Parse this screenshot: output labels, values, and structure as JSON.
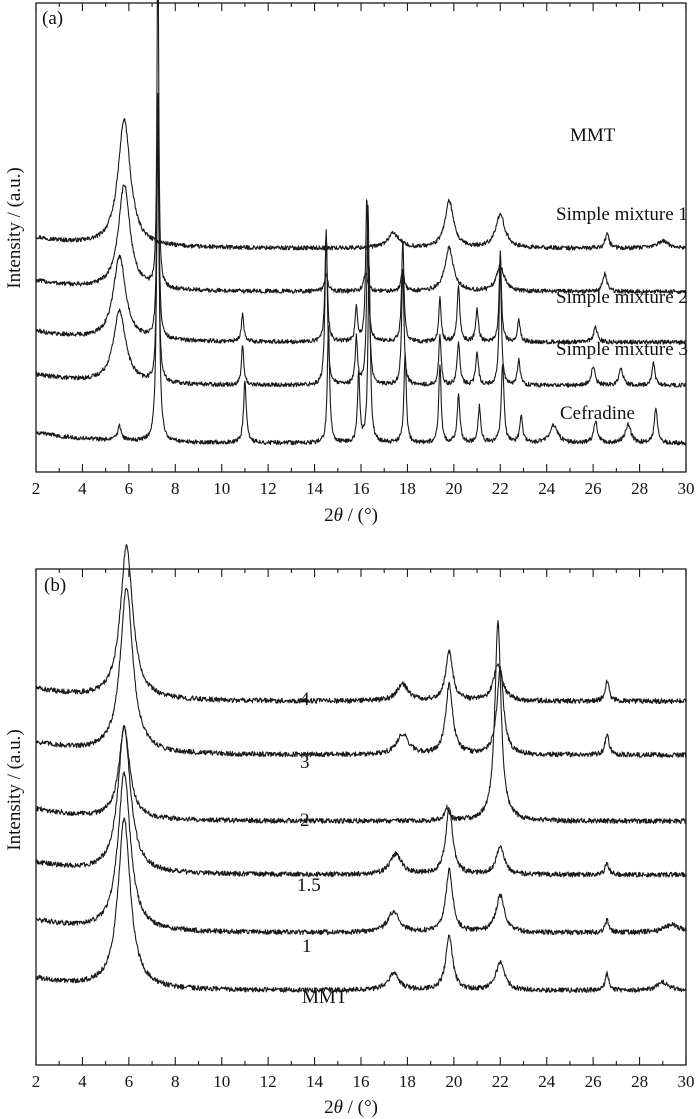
{
  "chart_data": [
    {
      "type": "line",
      "panel_label": "(a)",
      "xlabel_prefix": "2",
      "xlabel_symbol": "θ",
      "xlabel_suffix": " / (°)",
      "ylabel": "Intensity / (a.u.)",
      "xlim": [
        2,
        30
      ],
      "xticks": [
        2,
        4,
        6,
        8,
        10,
        12,
        14,
        16,
        18,
        20,
        22,
        24,
        26,
        28,
        30
      ],
      "series": [
        {
          "name": "MMT",
          "baseline": 0.34,
          "peaks": [
            [
              5.8,
              0.35,
              0.32
            ],
            [
              17.4,
              0.04,
              0.3
            ],
            [
              19.8,
              0.13,
              0.22
            ],
            [
              22.0,
              0.09,
              0.25
            ],
            [
              26.6,
              0.04,
              0.1
            ],
            [
              29.0,
              0.02,
              0.3
            ]
          ]
        },
        {
          "name": "Simple mixture 1",
          "baseline": 0.22,
          "peaks": [
            [
              5.8,
              0.29,
              0.3
            ],
            [
              7.25,
              1.07,
              0.04
            ],
            [
              14.5,
              0.05,
              0.08
            ],
            [
              16.2,
              0.05,
              0.1
            ],
            [
              17.8,
              0.06,
              0.08
            ],
            [
              19.8,
              0.12,
              0.22
            ],
            [
              22.0,
              0.07,
              0.2
            ],
            [
              26.5,
              0.05,
              0.1
            ]
          ]
        },
        {
          "name": "Simple mixture 2",
          "baseline": 0.08,
          "peaks": [
            [
              5.6,
              0.23,
              0.32
            ],
            [
              7.25,
              0.7,
              0.05
            ],
            [
              10.9,
              0.08,
              0.06
            ],
            [
              14.5,
              0.3,
              0.06
            ],
            [
              15.8,
              0.1,
              0.06
            ],
            [
              16.25,
              0.4,
              0.06
            ],
            [
              17.8,
              0.28,
              0.06
            ],
            [
              19.4,
              0.12,
              0.06
            ],
            [
              20.2,
              0.15,
              0.07
            ],
            [
              21.0,
              0.09,
              0.07
            ],
            [
              22.0,
              0.25,
              0.06
            ],
            [
              22.8,
              0.06,
              0.07
            ],
            [
              26.1,
              0.04,
              0.1
            ]
          ]
        },
        {
          "name": "Simple mixture 3",
          "baseline": -0.04,
          "peaks": [
            [
              5.6,
              0.2,
              0.32
            ],
            [
              7.25,
              0.75,
              0.05
            ],
            [
              10.9,
              0.11,
              0.06
            ],
            [
              14.5,
              0.43,
              0.06
            ],
            [
              15.8,
              0.13,
              0.06
            ],
            [
              16.3,
              0.5,
              0.06
            ],
            [
              17.8,
              0.32,
              0.06
            ],
            [
              19.4,
              0.14,
              0.06
            ],
            [
              20.2,
              0.12,
              0.07
            ],
            [
              21.0,
              0.09,
              0.07
            ],
            [
              22.0,
              0.33,
              0.06
            ],
            [
              22.8,
              0.07,
              0.07
            ],
            [
              26.0,
              0.05,
              0.1
            ],
            [
              27.2,
              0.05,
              0.1
            ],
            [
              28.6,
              0.06,
              0.08
            ]
          ]
        },
        {
          "name": "Cefradine",
          "baseline": -0.2,
          "peaks": [
            [
              5.6,
              0.04,
              0.1
            ],
            [
              7.25,
              0.95,
              0.06
            ],
            [
              11.0,
              0.17,
              0.07
            ],
            [
              14.6,
              0.32,
              0.06
            ],
            [
              15.9,
              0.19,
              0.06
            ],
            [
              16.35,
              0.5,
              0.06
            ],
            [
              17.9,
              0.25,
              0.06
            ],
            [
              19.4,
              0.22,
              0.06
            ],
            [
              20.2,
              0.13,
              0.07
            ],
            [
              21.1,
              0.1,
              0.07
            ],
            [
              22.1,
              0.22,
              0.07
            ],
            [
              22.9,
              0.08,
              0.07
            ],
            [
              24.3,
              0.05,
              0.2
            ],
            [
              26.1,
              0.06,
              0.1
            ],
            [
              27.5,
              0.05,
              0.15
            ],
            [
              28.7,
              0.1,
              0.08
            ]
          ]
        }
      ]
    },
    {
      "type": "line",
      "panel_label": "(b)",
      "xlabel_prefix": "2",
      "xlabel_symbol": "θ",
      "xlabel_suffix": " / (°)",
      "ylabel": "Intensity / (a.u.)",
      "xlim": [
        2,
        30
      ],
      "xticks": [
        2,
        4,
        6,
        8,
        10,
        12,
        14,
        16,
        18,
        20,
        22,
        24,
        26,
        28,
        30
      ],
      "series": [
        {
          "name": "4",
          "baseline": 0.7,
          "peaks": [
            [
              5.9,
              0.37,
              0.32
            ],
            [
              17.8,
              0.04,
              0.3
            ],
            [
              19.8,
              0.12,
              0.18
            ],
            [
              21.9,
              0.09,
              0.22
            ],
            [
              26.6,
              0.05,
              0.1
            ]
          ]
        },
        {
          "name": "3",
          "baseline": 0.57,
          "peaks": [
            [
              5.9,
              0.4,
              0.32
            ],
            [
              17.8,
              0.05,
              0.3
            ],
            [
              19.8,
              0.17,
              0.18
            ],
            [
              22.0,
              0.21,
              0.17
            ],
            [
              26.6,
              0.05,
              0.1
            ]
          ]
        },
        {
          "name": "2",
          "baseline": 0.41,
          "peaks": [
            [
              5.8,
              0.22,
              0.28
            ],
            [
              19.7,
              0.03,
              0.12
            ],
            [
              21.9,
              0.48,
              0.16
            ]
          ]
        },
        {
          "name": "1.5",
          "baseline": 0.28,
          "peaks": [
            [
              5.8,
              0.35,
              0.32
            ],
            [
              17.5,
              0.05,
              0.3
            ],
            [
              19.8,
              0.16,
              0.18
            ],
            [
              22.0,
              0.07,
              0.2
            ],
            [
              26.6,
              0.03,
              0.1
            ]
          ]
        },
        {
          "name": "1",
          "baseline": 0.14,
          "peaks": [
            [
              5.8,
              0.38,
              0.32
            ],
            [
              17.4,
              0.05,
              0.3
            ],
            [
              19.8,
              0.15,
              0.18
            ],
            [
              22.0,
              0.09,
              0.22
            ],
            [
              26.6,
              0.03,
              0.1
            ],
            [
              29.4,
              0.02,
              0.4
            ]
          ]
        },
        {
          "name": "MMT",
          "baseline": 0.0,
          "peaks": [
            [
              5.8,
              0.41,
              0.32
            ],
            [
              17.4,
              0.04,
              0.3
            ],
            [
              19.8,
              0.13,
              0.18
            ],
            [
              22.0,
              0.07,
              0.22
            ],
            [
              26.6,
              0.04,
              0.1
            ],
            [
              29.0,
              0.02,
              0.3
            ]
          ]
        }
      ]
    }
  ]
}
